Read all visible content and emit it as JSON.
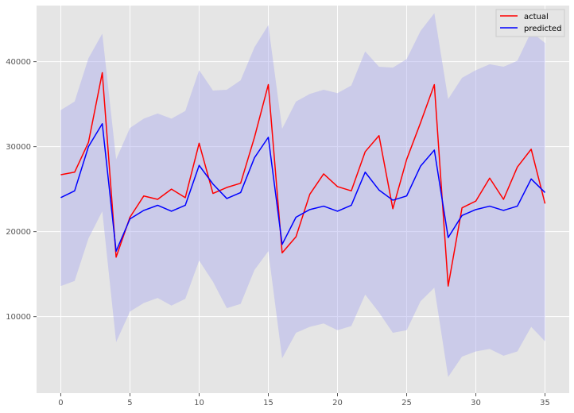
{
  "chart_data": {
    "type": "line",
    "title": "",
    "xlabel": "",
    "ylabel": "",
    "xlim": [
      -1.75,
      36.75
    ],
    "ylim": [
      1000,
      46600
    ],
    "x_ticks": [
      0,
      5,
      10,
      15,
      20,
      25,
      30,
      35
    ],
    "y_ticks": [
      10000,
      20000,
      30000,
      40000
    ],
    "x_tick_labels": [
      "0",
      "5",
      "10",
      "15",
      "20",
      "25",
      "30",
      "35"
    ],
    "y_tick_labels": [
      "10000",
      "20000",
      "30000",
      "40000"
    ],
    "grid": true,
    "legend_position": "top-right",
    "x": [
      0,
      1,
      2,
      3,
      4,
      5,
      6,
      7,
      8,
      9,
      10,
      11,
      12,
      13,
      14,
      15,
      16,
      17,
      18,
      19,
      20,
      21,
      22,
      23,
      24,
      25,
      26,
      27,
      28,
      29,
      30,
      31,
      32,
      33,
      34,
      35
    ],
    "series": [
      {
        "name": "actual",
        "color": "#ff0000",
        "values": [
          26700,
          27000,
          30500,
          38700,
          17000,
          21700,
          24200,
          23800,
          25000,
          24000,
          30400,
          24500,
          25200,
          25700,
          31100,
          37300,
          17500,
          19400,
          24400,
          26800,
          25300,
          24800,
          29400,
          31300,
          22700,
          28500,
          32800,
          37300,
          13600,
          22800,
          23600,
          26300,
          23800,
          27600,
          29700,
          23300
        ]
      },
      {
        "name": "predicted",
        "color": "#0000ff",
        "values": [
          24000,
          24800,
          30000,
          32700,
          17700,
          21500,
          22500,
          23100,
          22400,
          23100,
          27800,
          25600,
          23900,
          24600,
          28700,
          31100,
          18500,
          21700,
          22600,
          23000,
          22400,
          23100,
          27000,
          24900,
          23700,
          24200,
          27700,
          29600,
          19300,
          21900,
          22600,
          23000,
          22500,
          23000,
          26200,
          24600
        ]
      }
    ],
    "interval": {
      "color": "#aaaaee",
      "lower": [
        13600,
        14200,
        19200,
        22400,
        7000,
        10600,
        11600,
        12200,
        11300,
        12100,
        16600,
        14100,
        11000,
        11500,
        15500,
        17700,
        5100,
        8100,
        8800,
        9200,
        8400,
        8900,
        12600,
        10500,
        8100,
        8400,
        11800,
        13400,
        2900,
        5300,
        5900,
        6200,
        5400,
        5900,
        8800,
        7100
      ],
      "upper": [
        34300,
        35300,
        40400,
        43300,
        28500,
        32200,
        33300,
        33900,
        33300,
        34200,
        39000,
        36600,
        36700,
        37800,
        41700,
        44300,
        32100,
        35300,
        36200,
        36700,
        36300,
        37200,
        41200,
        39400,
        39300,
        40300,
        43600,
        45700,
        35600,
        38100,
        39000,
        39700,
        39400,
        40100,
        43500,
        42200
      ]
    }
  }
}
